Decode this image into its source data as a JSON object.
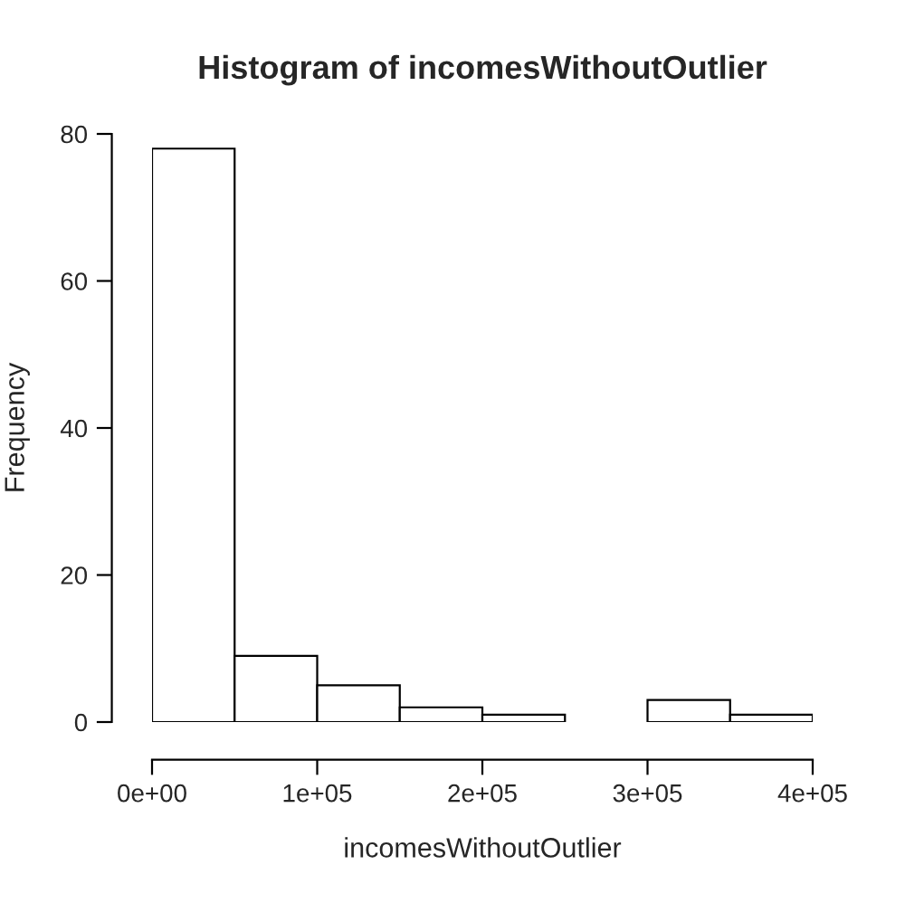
{
  "chart_data": {
    "type": "histogram",
    "title": "Histogram of incomesWithoutOutlier",
    "xlabel": "incomesWithoutOutlier",
    "ylabel": "Frequency",
    "bins": [
      0,
      50000,
      100000,
      150000,
      200000,
      250000,
      300000,
      350000,
      400000
    ],
    "values": [
      78,
      9,
      5,
      2,
      1,
      0,
      3,
      1
    ],
    "color": "#ffffff",
    "xlim": [
      0,
      400000
    ],
    "xticks": [
      {
        "value": 0,
        "label": "0e+00"
      },
      {
        "value": 100000,
        "label": "1e+05"
      },
      {
        "value": 200000,
        "label": "2e+05"
      },
      {
        "value": 300000,
        "label": "3e+05"
      },
      {
        "value": 400000,
        "label": "4e+05"
      }
    ],
    "ylim": [
      0,
      80
    ],
    "yticks": [
      0,
      20,
      40,
      60,
      80
    ]
  }
}
